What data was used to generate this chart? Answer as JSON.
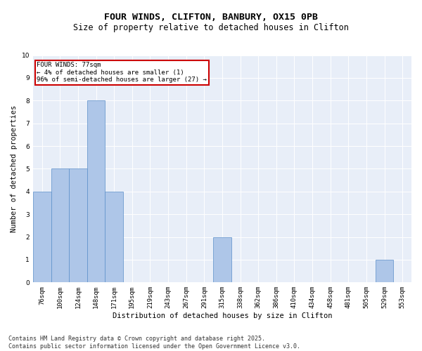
{
  "title": "FOUR WINDS, CLIFTON, BANBURY, OX15 0PB",
  "subtitle": "Size of property relative to detached houses in Clifton",
  "xlabel": "Distribution of detached houses by size in Clifton",
  "ylabel": "Number of detached properties",
  "bar_labels": [
    "76sqm",
    "100sqm",
    "124sqm",
    "148sqm",
    "171sqm",
    "195sqm",
    "219sqm",
    "243sqm",
    "267sqm",
    "291sqm",
    "315sqm",
    "338sqm",
    "362sqm",
    "386sqm",
    "410sqm",
    "434sqm",
    "458sqm",
    "481sqm",
    "505sqm",
    "529sqm",
    "553sqm"
  ],
  "bar_values": [
    4,
    5,
    5,
    8,
    4,
    0,
    0,
    0,
    0,
    0,
    2,
    0,
    0,
    0,
    0,
    0,
    0,
    0,
    0,
    1,
    0
  ],
  "bar_color": "#aec6e8",
  "bar_edge_color": "#5b8fc9",
  "background_color": "#e8eef8",
  "annotation_text": "FOUR WINDS: 77sqm\n← 4% of detached houses are smaller (1)\n96% of semi-detached houses are larger (27) →",
  "annotation_box_color": "#ffffff",
  "annotation_box_edge_color": "#cc0000",
  "footer_text": "Contains HM Land Registry data © Crown copyright and database right 2025.\nContains public sector information licensed under the Open Government Licence v3.0.",
  "ylim": [
    0,
    10
  ],
  "yticks": [
    0,
    1,
    2,
    3,
    4,
    5,
    6,
    7,
    8,
    9,
    10
  ],
  "title_fontsize": 9.5,
  "subtitle_fontsize": 8.5,
  "axis_fontsize": 7.5,
  "tick_fontsize": 6.5,
  "annotation_fontsize": 6.5,
  "footer_fontsize": 6
}
